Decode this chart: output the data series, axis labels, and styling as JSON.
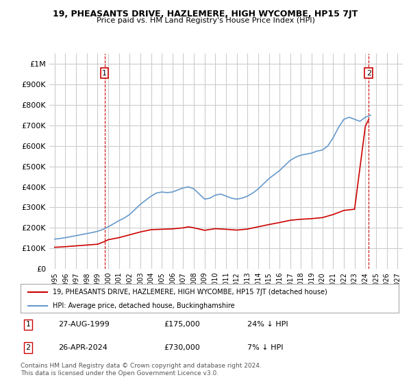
{
  "title": "19, PHEASANTS DRIVE, HAZLEMERE, HIGH WYCOMBE, HP15 7JT",
  "subtitle": "Price paid vs. HM Land Registry's House Price Index (HPI)",
  "ylabel": "",
  "background_color": "#ffffff",
  "grid_color": "#cccccc",
  "red_color": "#cc0000",
  "blue_color": "#6699cc",
  "purchase1": {
    "date": "27-AUG-1999",
    "price": 175000,
    "label": "1"
  },
  "purchase2": {
    "date": "26-APR-2024",
    "price": 730000,
    "label": "2"
  },
  "purchase1_x": 1999.65,
  "purchase2_x": 2024.32,
  "legend_line1": "19, PHEASANTS DRIVE, HAZLEMERE, HIGH WYCOMBE, HP15 7JT (detached house)",
  "legend_line2": "HPI: Average price, detached house, Buckinghamshire",
  "footnote": "Contains HM Land Registry data © Crown copyright and database right 2024.\nThis data is licensed under the Open Government Licence v3.0.",
  "table": [
    {
      "num": "1",
      "date": "27-AUG-1999",
      "price": "£175,000",
      "note": "24% ↓ HPI"
    },
    {
      "num": "2",
      "date": "26-APR-2024",
      "price": "£730,000",
      "note": "7% ↓ HPI"
    }
  ],
  "hpi_years": [
    1995,
    1995.5,
    1996,
    1996.5,
    1997,
    1997.5,
    1998,
    1998.5,
    1999,
    1999.5,
    2000,
    2000.5,
    2001,
    2001.5,
    2002,
    2002.5,
    2003,
    2003.5,
    2004,
    2004.5,
    2005,
    2005.5,
    2006,
    2006.5,
    2007,
    2007.5,
    2008,
    2008.5,
    2009,
    2009.5,
    2010,
    2010.5,
    2011,
    2011.5,
    2012,
    2012.5,
    2013,
    2013.5,
    2014,
    2014.5,
    2015,
    2015.5,
    2016,
    2016.5,
    2017,
    2017.5,
    2018,
    2018.5,
    2019,
    2019.5,
    2020,
    2020.5,
    2021,
    2021.5,
    2022,
    2022.5,
    2023,
    2023.5,
    2024,
    2024.5
  ],
  "hpi_values": [
    145000,
    148000,
    152000,
    157000,
    162000,
    167000,
    172000,
    177000,
    183000,
    192000,
    205000,
    220000,
    235000,
    248000,
    265000,
    290000,
    315000,
    335000,
    355000,
    370000,
    375000,
    372000,
    375000,
    385000,
    395000,
    400000,
    390000,
    365000,
    340000,
    345000,
    360000,
    365000,
    355000,
    345000,
    340000,
    345000,
    355000,
    370000,
    390000,
    415000,
    440000,
    460000,
    480000,
    505000,
    530000,
    545000,
    555000,
    560000,
    565000,
    575000,
    580000,
    600000,
    640000,
    690000,
    730000,
    740000,
    730000,
    720000,
    740000,
    750000
  ],
  "red_years": [
    1995,
    1996,
    1997,
    1998,
    1999,
    1999.65,
    2000,
    2001,
    2002,
    2003,
    2004,
    2005,
    2006,
    2007,
    2007.5,
    2008,
    2009,
    2010,
    2011,
    2012,
    2013,
    2014,
    2015,
    2016,
    2017,
    2018,
    2019,
    2020,
    2021,
    2022,
    2023,
    2024,
    2024.32
  ],
  "red_values": [
    105000,
    108000,
    112000,
    116000,
    120000,
    133000,
    142000,
    152000,
    166000,
    180000,
    191000,
    193000,
    195000,
    200000,
    205000,
    200000,
    188000,
    196000,
    193000,
    189000,
    194000,
    205000,
    216000,
    226000,
    237000,
    242000,
    245000,
    250000,
    265000,
    285000,
    291000,
    695000,
    730000
  ],
  "ylim": [
    0,
    1050000
  ],
  "xlim": [
    1994.5,
    2027.5
  ],
  "yticks": [
    0,
    100000,
    200000,
    300000,
    400000,
    500000,
    600000,
    700000,
    800000,
    900000,
    1000000
  ],
  "ytick_labels": [
    "£0",
    "£100K",
    "£200K",
    "£300K",
    "£400K",
    "£500K",
    "£600K",
    "£700K",
    "£800K",
    "£900K",
    "£1M"
  ],
  "xticks": [
    1995,
    1996,
    1997,
    1998,
    1999,
    2000,
    2001,
    2002,
    2003,
    2004,
    2005,
    2006,
    2007,
    2008,
    2009,
    2010,
    2011,
    2012,
    2013,
    2014,
    2015,
    2016,
    2017,
    2018,
    2019,
    2020,
    2021,
    2022,
    2023,
    2024,
    2025,
    2026,
    2027
  ]
}
